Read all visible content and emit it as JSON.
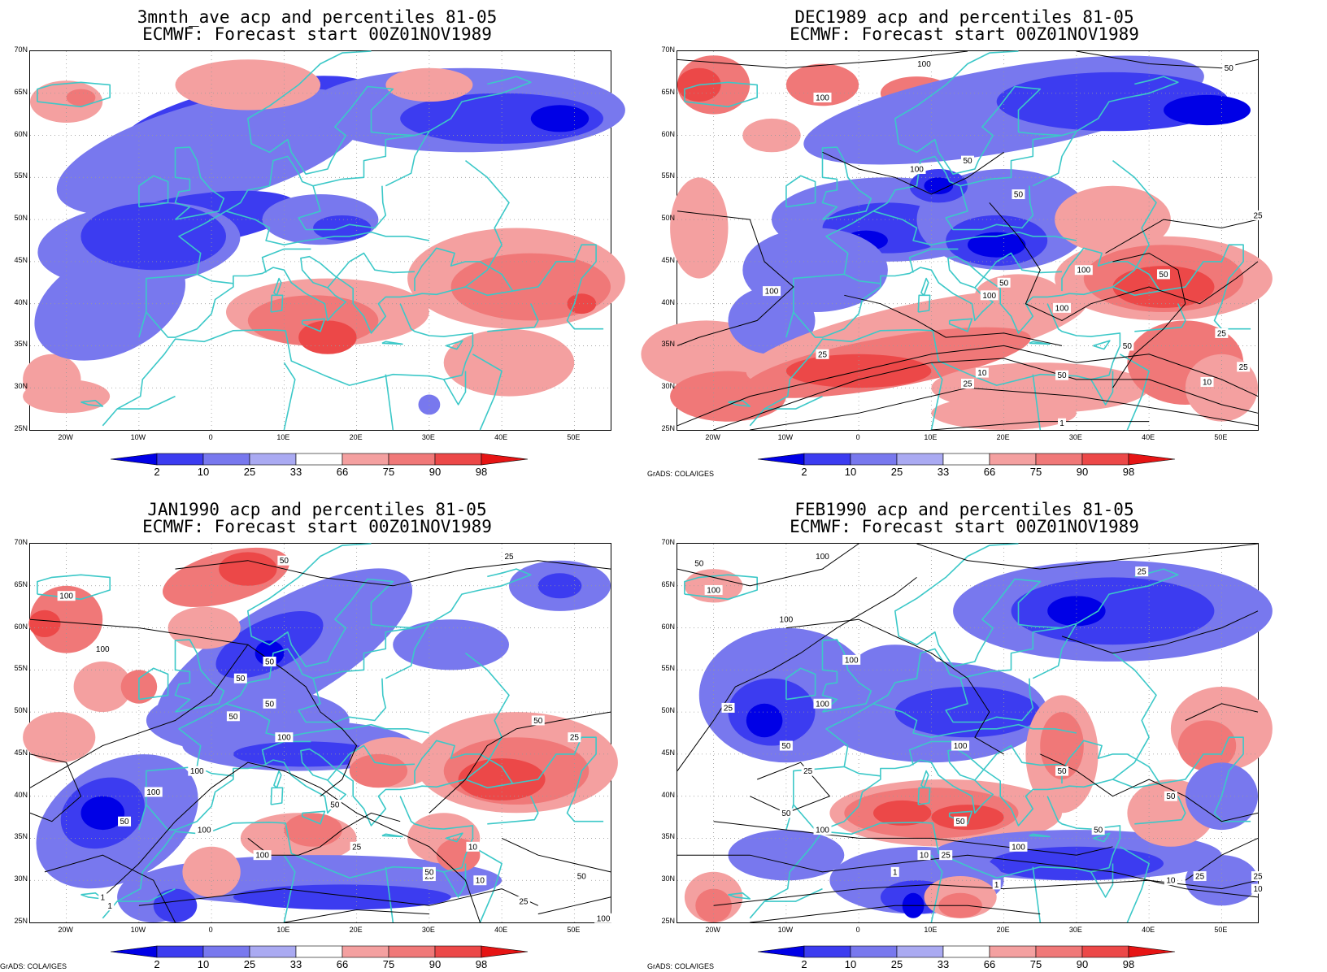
{
  "credit": "GrADS: COLA/IGES",
  "legend": {
    "labels": [
      "2",
      "10",
      "25",
      "33",
      "66",
      "75",
      "90",
      "98"
    ],
    "colors": [
      "#0000e6",
      "#3c3cf0",
      "#7878ee",
      "#aaaaf2",
      "#ffffff",
      "#f4a0a0",
      "#f07878",
      "#ec4848",
      "#e61414"
    ]
  },
  "axes": {
    "lat_ticks": [
      "70N",
      "65N",
      "60N",
      "55N",
      "50N",
      "45N",
      "40N",
      "35N",
      "30N",
      "25N"
    ],
    "lon_ticks": [
      "20W",
      "10W",
      "0",
      "10E",
      "20E",
      "30E",
      "40E",
      "50E"
    ]
  },
  "colors": {
    "coast": "#3cc8c8",
    "contour": "#000000",
    "grid": "#999999"
  },
  "panels": [
    {
      "title1": "3mnth_ave acp and percentiles 81-05",
      "title2": "ECMWF: Forecast start 00Z01NOV1989",
      "contour_labels": [],
      "credit_shown": false
    },
    {
      "title1": "DEC1989 acp and percentiles 81-05",
      "title2": "ECMWF: Forecast start 00Z01NOV1989",
      "contour_labels": [
        "100",
        "100",
        "50",
        "100",
        "50",
        "50",
        "25",
        "100",
        "100",
        "100",
        "50",
        "100",
        "50",
        "25",
        "25",
        "10",
        "25",
        "50",
        "10",
        "50",
        "25",
        "1"
      ],
      "credit_shown": true
    },
    {
      "title1": "JAN1990 acp and percentiles 81-05",
      "title2": "ECMWF: Forecast start 00Z01NOV1989",
      "contour_labels": [
        "50",
        "25",
        "100",
        "100",
        "50",
        "50",
        "50",
        "50",
        "100",
        "25",
        "50",
        "100",
        "100",
        "50",
        "100",
        "50",
        "100",
        "25",
        "10",
        "25",
        "50",
        "10",
        "50",
        "1",
        "1",
        "25",
        "100"
      ],
      "credit_shown": true
    },
    {
      "title1": "FEB1990 acp and percentiles 81-05",
      "title2": "ECMWF: Forecast start 00Z01NOV1989",
      "contour_labels": [
        "50",
        "25",
        "100",
        "100",
        "100",
        "100",
        "25",
        "100",
        "50",
        "25",
        "100",
        "50",
        "50",
        "100",
        "50",
        "50",
        "50",
        "10",
        "25",
        "100",
        "1",
        "1",
        "10",
        "25",
        "25",
        "10"
      ],
      "credit_shown": true
    }
  ]
}
